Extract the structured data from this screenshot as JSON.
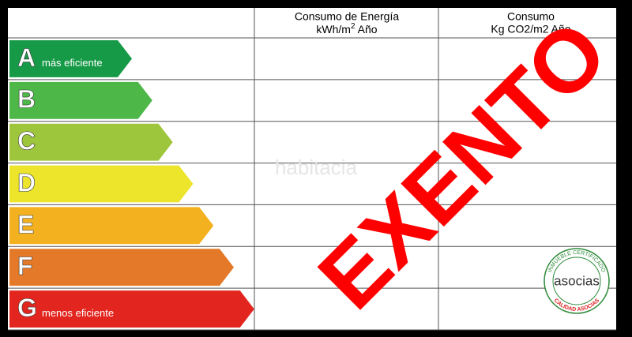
{
  "header": {
    "energy_title": "Consumo de Energía",
    "energy_unit": "kWh/m",
    "energy_unit_sup": "2",
    "energy_unit_suffix": " Año",
    "emissions_title": "Consumo",
    "emissions_unit": "Kg CO2/m2 Año"
  },
  "ratings": [
    {
      "letter": "A",
      "note": "más eficiente",
      "color": "#169a47"
    },
    {
      "letter": "B",
      "color": "#4db748"
    },
    {
      "letter": "C",
      "color": "#9ec63c"
    },
    {
      "letter": "D",
      "color": "#ece52b"
    },
    {
      "letter": "E",
      "color": "#f3b11f"
    },
    {
      "letter": "F",
      "color": "#e47a29"
    },
    {
      "letter": "G",
      "note": "menos eficiente",
      "color": "#e2261f"
    }
  ],
  "stamp": "EXENTO",
  "watermark": "habitacia",
  "logo": {
    "name": "asocias",
    "top_text": "INMUEBLE CERTIFICADO",
    "bottom_text": "CALIDAD ASOCIAS"
  }
}
